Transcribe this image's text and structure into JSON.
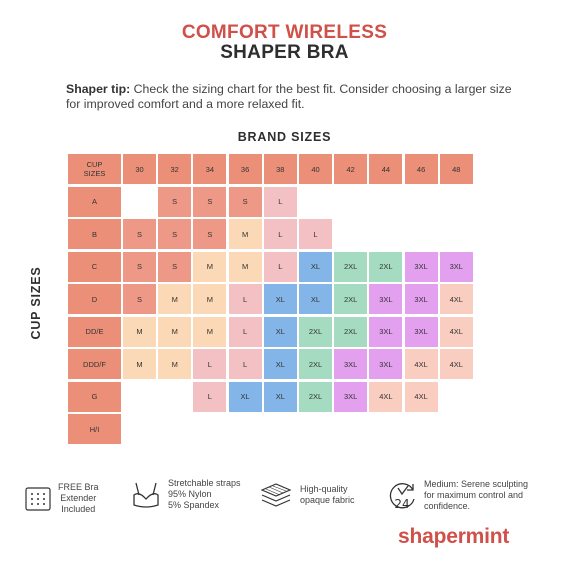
{
  "header": {
    "title_line1": "COMFORT WIRELESS",
    "title_line2": "SHAPER BRA"
  },
  "tip": {
    "label": "Shaper tip:",
    "text": " Check the sizing chart for the best fit. Consider choosing a larger size for improved comfort and a more relaxed fit."
  },
  "chart": {
    "brand_label": "BRAND SIZES",
    "cup_axis_label": "CUP SIZES",
    "corner_label": "CUP SIZES",
    "band_sizes": [
      "30",
      "32",
      "34",
      "36",
      "38",
      "40",
      "42",
      "44",
      "46",
      "48"
    ],
    "cup_rows": [
      "A",
      "B",
      "C",
      "D",
      "DD/E",
      "DDD/F",
      "G",
      "H/I"
    ],
    "cells": [
      [
        "",
        "S",
        "S",
        "S",
        "L",
        "",
        "",
        "",
        "",
        ""
      ],
      [
        "S",
        "S",
        "S",
        "M",
        "L",
        "L",
        "",
        "",
        "",
        ""
      ],
      [
        "S",
        "S",
        "M",
        "M",
        "L",
        "XL",
        "2XL",
        "2XL",
        "3XL",
        "3XL"
      ],
      [
        "S",
        "M",
        "M",
        "L",
        "XL",
        "XL",
        "2XL",
        "3XL",
        "3XL",
        "4XL"
      ],
      [
        "M",
        "M",
        "M",
        "L",
        "XL",
        "2XL",
        "2XL",
        "3XL",
        "3XL",
        "4XL"
      ],
      [
        "M",
        "M",
        "L",
        "L",
        "XL",
        "2XL",
        "3XL",
        "3XL",
        "4XL",
        "4XL"
      ],
      [
        "",
        "",
        "L",
        "XL",
        "XL",
        "2XL",
        "3XL",
        "4XL",
        "4XL",
        ""
      ],
      [
        "",
        "",
        "",
        "",
        "",
        "",
        "",
        "",
        "",
        ""
      ]
    ],
    "size_colors": {
      "S": "#ee9988",
      "M": "#fbd9b6",
      "L": "#f3c0c4",
      "XL": "#84b5e8",
      "2XL": "#a5dcc1",
      "3XL": "#e3a0ef",
      "4XL": "#f9cec0"
    },
    "header_color": "#ec8f78"
  },
  "features": [
    {
      "icon": "bra-extender-icon",
      "lines": [
        "FREE Bra",
        "Extender",
        "Included"
      ]
    },
    {
      "icon": "bra-straps-icon",
      "lines": [
        "Stretchable straps",
        "95% Nylon",
        "5% Spandex"
      ]
    },
    {
      "icon": "fabric-layers-icon",
      "lines": [
        "High-quality",
        "opaque fabric"
      ]
    },
    {
      "icon": "24h-comfort-icon",
      "lines": [
        "Medium: Serene sculpting",
        "for maximum control and",
        "confidence."
      ]
    }
  ],
  "brand": {
    "logo_text": "shapermint",
    "accent": "#d0504a"
  }
}
